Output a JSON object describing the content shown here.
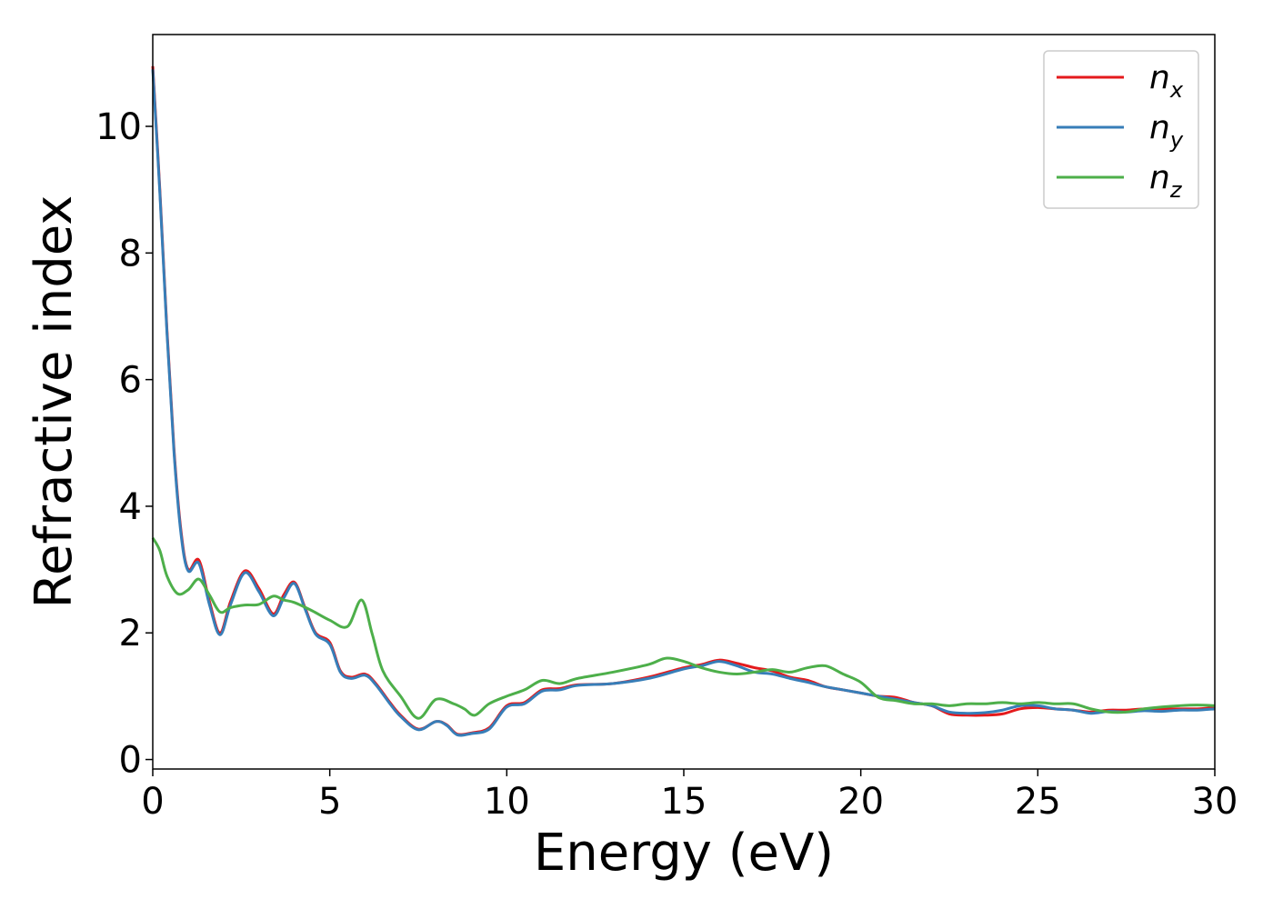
{
  "chart_data": {
    "type": "line",
    "xlabel": "Energy (eV)",
    "ylabel": "Refractive index",
    "xlim": [
      0,
      30
    ],
    "ylim": [
      -0.15,
      11.45
    ],
    "xticks": [
      0,
      5,
      10,
      15,
      20,
      25,
      30
    ],
    "yticks": [
      0,
      2,
      4,
      6,
      8,
      10
    ],
    "grid": false,
    "legend_position": "top-right",
    "series": [
      {
        "name": "n_x",
        "label_base": "n",
        "label_sub": "x",
        "color": "#e41a1c",
        "x": [
          0,
          0.2,
          0.4,
          0.6,
          0.8,
          1.0,
          1.3,
          1.6,
          1.9,
          2.2,
          2.6,
          3.0,
          3.4,
          3.7,
          4.0,
          4.3,
          4.6,
          5.0,
          5.3,
          5.6,
          6.0,
          6.3,
          6.7,
          7.0,
          7.5,
          8.0,
          8.3,
          8.6,
          9.0,
          9.5,
          10.0,
          10.5,
          11.0,
          11.5,
          12.0,
          13.0,
          14.0,
          15.0,
          15.5,
          16.0,
          16.5,
          17.0,
          17.5,
          18.0,
          18.5,
          19.0,
          19.5,
          20.0,
          20.5,
          21.0,
          21.5,
          22.0,
          22.5,
          23.0,
          23.5,
          24.0,
          24.5,
          25.0,
          25.5,
          26.0,
          26.5,
          27.0,
          27.5,
          28.0,
          28.5,
          29.0,
          29.5,
          30.0
        ],
        "values": [
          10.95,
          9.0,
          6.8,
          4.9,
          3.6,
          3.0,
          3.15,
          2.5,
          2.0,
          2.5,
          2.98,
          2.7,
          2.3,
          2.6,
          2.8,
          2.4,
          2.0,
          1.85,
          1.4,
          1.3,
          1.35,
          1.2,
          0.9,
          0.7,
          0.48,
          0.6,
          0.55,
          0.4,
          0.42,
          0.5,
          0.85,
          0.9,
          1.1,
          1.12,
          1.18,
          1.2,
          1.3,
          1.45,
          1.5,
          1.57,
          1.52,
          1.45,
          1.4,
          1.3,
          1.25,
          1.15,
          1.1,
          1.05,
          1.0,
          0.98,
          0.9,
          0.85,
          0.72,
          0.7,
          0.7,
          0.72,
          0.8,
          0.82,
          0.8,
          0.78,
          0.75,
          0.78,
          0.78,
          0.8,
          0.8,
          0.8,
          0.8,
          0.82
        ]
      },
      {
        "name": "n_y",
        "label_base": "n",
        "label_sub": "y",
        "color": "#377eb8",
        "x": [
          0,
          0.2,
          0.4,
          0.6,
          0.8,
          1.0,
          1.3,
          1.6,
          1.9,
          2.2,
          2.6,
          3.0,
          3.4,
          3.7,
          4.0,
          4.3,
          4.6,
          5.0,
          5.3,
          5.6,
          6.0,
          6.3,
          6.7,
          7.0,
          7.5,
          8.0,
          8.3,
          8.6,
          9.0,
          9.5,
          10.0,
          10.5,
          11.0,
          11.5,
          12.0,
          13.0,
          14.0,
          15.0,
          15.5,
          16.0,
          16.5,
          17.0,
          17.5,
          18.0,
          18.5,
          19.0,
          19.5,
          20.0,
          20.5,
          21.0,
          21.5,
          22.0,
          22.5,
          23.0,
          23.5,
          24.0,
          24.5,
          25.0,
          25.5,
          26.0,
          26.5,
          27.0,
          27.5,
          28.0,
          28.5,
          29.0,
          29.5,
          30.0
        ],
        "values": [
          10.9,
          8.95,
          6.75,
          4.85,
          3.55,
          2.98,
          3.1,
          2.45,
          1.97,
          2.45,
          2.95,
          2.65,
          2.27,
          2.55,
          2.78,
          2.38,
          1.98,
          1.82,
          1.38,
          1.28,
          1.33,
          1.18,
          0.88,
          0.68,
          0.47,
          0.6,
          0.54,
          0.39,
          0.41,
          0.48,
          0.83,
          0.88,
          1.08,
          1.1,
          1.17,
          1.2,
          1.28,
          1.43,
          1.48,
          1.55,
          1.48,
          1.38,
          1.35,
          1.28,
          1.22,
          1.15,
          1.1,
          1.05,
          1.0,
          0.95,
          0.9,
          0.85,
          0.75,
          0.73,
          0.74,
          0.78,
          0.85,
          0.85,
          0.8,
          0.78,
          0.73,
          0.76,
          0.75,
          0.77,
          0.76,
          0.78,
          0.78,
          0.8
        ]
      },
      {
        "name": "n_z",
        "label_base": "n",
        "label_sub": "z",
        "color": "#4daf4a",
        "x": [
          0,
          0.2,
          0.4,
          0.7,
          1.0,
          1.3,
          1.6,
          1.9,
          2.2,
          2.6,
          3.0,
          3.4,
          3.7,
          4.0,
          4.5,
          5.0,
          5.5,
          5.9,
          6.2,
          6.5,
          7.0,
          7.5,
          8.0,
          8.5,
          8.8,
          9.1,
          9.5,
          10.0,
          10.5,
          11.0,
          11.5,
          12.0,
          13.0,
          14.0,
          14.5,
          15.0,
          15.5,
          16.0,
          16.5,
          17.0,
          17.5,
          18.0,
          18.5,
          19.0,
          19.5,
          20.0,
          20.5,
          21.0,
          21.5,
          22.0,
          22.5,
          23.0,
          23.5,
          24.0,
          24.5,
          25.0,
          25.5,
          26.0,
          26.5,
          27.0,
          27.5,
          28.0,
          28.5,
          29.0,
          29.5,
          30.0
        ],
        "values": [
          3.5,
          3.3,
          2.9,
          2.62,
          2.68,
          2.85,
          2.6,
          2.33,
          2.4,
          2.44,
          2.45,
          2.58,
          2.52,
          2.48,
          2.35,
          2.2,
          2.1,
          2.52,
          1.98,
          1.4,
          1.0,
          0.65,
          0.95,
          0.88,
          0.8,
          0.7,
          0.88,
          1.0,
          1.1,
          1.25,
          1.2,
          1.28,
          1.38,
          1.5,
          1.6,
          1.55,
          1.45,
          1.38,
          1.35,
          1.38,
          1.42,
          1.38,
          1.45,
          1.48,
          1.35,
          1.22,
          0.98,
          0.93,
          0.88,
          0.88,
          0.85,
          0.88,
          0.88,
          0.9,
          0.88,
          0.9,
          0.88,
          0.88,
          0.8,
          0.75,
          0.75,
          0.8,
          0.83,
          0.85,
          0.86,
          0.85
        ]
      }
    ]
  }
}
